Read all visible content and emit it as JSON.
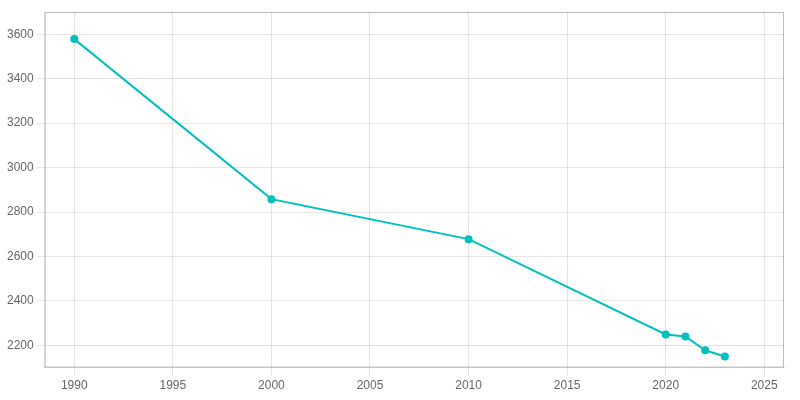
{
  "chart_data": {
    "type": "line",
    "x": [
      1990,
      2000,
      2010,
      2020,
      2021,
      2022,
      2023
    ],
    "values": [
      3578,
      2858,
      2678,
      2249,
      2240,
      2178,
      2150
    ],
    "color": "#00BFBF",
    "marker": "circle",
    "xlim": [
      1988.5,
      2026
    ],
    "ylim": [
      2100,
      3700
    ],
    "xticks": [
      1990,
      1995,
      2000,
      2005,
      2010,
      2015,
      2020,
      2025
    ],
    "yticks": [
      2200,
      2400,
      2600,
      2800,
      3000,
      3200,
      3400,
      3600
    ],
    "grid": true
  }
}
